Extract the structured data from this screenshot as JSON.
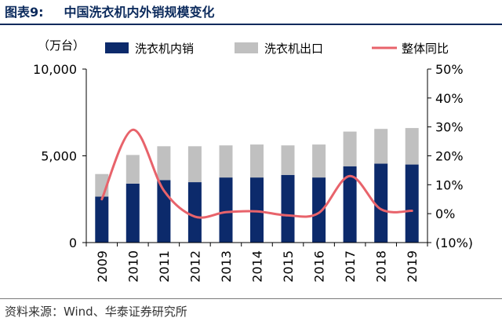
{
  "header": {
    "figure_number": "图表9:",
    "figure_title": "中国洗衣机内外销规模变化"
  },
  "footer": {
    "source": "资料来源：Wind、华泰证券研究所"
  },
  "chart_data": {
    "type": "bar",
    "stacked": true,
    "categories": [
      "2009",
      "2010",
      "2011",
      "2012",
      "2013",
      "2014",
      "2015",
      "2016",
      "2017",
      "2018",
      "2019"
    ],
    "series": [
      {
        "name": "洗衣机内销",
        "type": "bar",
        "axis": "left",
        "color": "#0c2a6b",
        "values": [
          2650,
          3400,
          3600,
          3480,
          3750,
          3750,
          3900,
          3750,
          4400,
          4550,
          4500
        ]
      },
      {
        "name": "洗衣机出口",
        "type": "bar",
        "axis": "left",
        "color": "#c0c0c0",
        "values": [
          1300,
          1650,
          1950,
          2070,
          1850,
          1900,
          1700,
          1900,
          2000,
          2000,
          2100
        ]
      },
      {
        "name": "整体同比",
        "type": "line",
        "axis": "right",
        "color": "#e8636b",
        "values": [
          5,
          29,
          8,
          -1,
          0.5,
          0.8,
          -0.6,
          0.3,
          13,
          1.5,
          1
        ]
      }
    ],
    "left_axis": {
      "unit_label": "（万台）",
      "ticks": [
        "0",
        "5,000",
        "10,000"
      ],
      "ylim": [
        0,
        10000
      ]
    },
    "right_axis": {
      "ticks": [
        "(10%)",
        "0%",
        "10%",
        "20%",
        "30%",
        "40%",
        "50%"
      ],
      "ylim": [
        -10,
        50
      ]
    },
    "legend_position": "top",
    "grid": false
  }
}
